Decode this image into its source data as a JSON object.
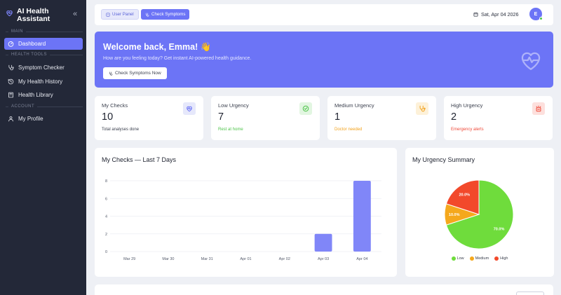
{
  "brand": {
    "line1": "AI Health",
    "line2": "Assistant",
    "collapse_glyph": "«"
  },
  "sidebar": {
    "sections": {
      "main": "MAIN",
      "tools": "HEALTH TOOLS",
      "account": "ACCOUNT"
    },
    "items": [
      {
        "label": "Dashboard",
        "icon": "dashboard-icon"
      },
      {
        "label": "Symptom Checker",
        "icon": "stethoscope-icon"
      },
      {
        "label": "My Health History",
        "icon": "history-icon"
      },
      {
        "label": "Health Library",
        "icon": "book-icon"
      },
      {
        "label": "My Profile",
        "icon": "user-icon"
      }
    ]
  },
  "topbar": {
    "user_panel": "User Panel",
    "check_symptoms": "Check Symptoms",
    "date": "Sat, Apr 04 2026",
    "avatar": "E"
  },
  "welcome": {
    "title": "Welcome back, Emma! 👋",
    "subtitle": "How are you feeling today? Get instant AI-powered health guidance.",
    "button": "Check Symptoms Now"
  },
  "stats": [
    {
      "label": "My Checks",
      "value": "10",
      "note": "Total analyses done",
      "color": "#6c74f6",
      "bg": "#e6e8fb"
    },
    {
      "label": "Low Urgency",
      "value": "7",
      "note": "Rest at home",
      "color": "#4ec44a",
      "bg": "#e2f6e1"
    },
    {
      "label": "Medium Urgency",
      "value": "1",
      "note": "Doctor needed",
      "color": "#f2a21d",
      "bg": "#fdf1d9"
    },
    {
      "label": "High Urgency",
      "value": "2",
      "note": "Emergency alerts",
      "color": "#ef4a3a",
      "bg": "#fde0dd"
    }
  ],
  "checks_panel": {
    "title": "My Checks — Last 7 Days"
  },
  "urgency_panel": {
    "title": "My Urgency Summary"
  },
  "chart_data": [
    {
      "type": "bar",
      "title": "My Checks — Last 7 Days",
      "categories": [
        "Mar 29",
        "Mar 30",
        "Mar 31",
        "Apr 01",
        "Apr 02",
        "Apr 03",
        "Apr 04"
      ],
      "values": [
        0,
        0,
        0,
        0,
        0,
        2,
        8
      ],
      "yticks": [
        0,
        2,
        4,
        6,
        8
      ],
      "ylim": [
        0,
        8
      ],
      "grid": true,
      "color": "#8086f8"
    },
    {
      "type": "pie",
      "title": "My Urgency Summary",
      "labels": [
        "Low",
        "Medium",
        "High"
      ],
      "values": [
        70.0,
        10.0,
        20.0
      ],
      "value_labels": [
        "70.0%",
        "10.0%",
        "20.0%"
      ],
      "colors": [
        "#6fdc3c",
        "#f5a81c",
        "#f2492b"
      ],
      "legend": "bottom"
    }
  ]
}
